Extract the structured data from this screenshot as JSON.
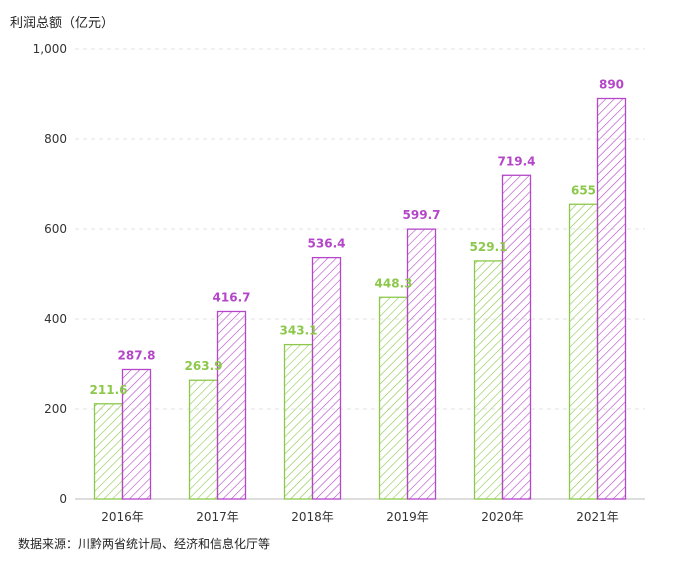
{
  "chart_data": {
    "type": "bar",
    "ylabel": "利润总额（亿元）",
    "categories": [
      "2016年",
      "2017年",
      "2018年",
      "2019年",
      "2020年",
      "2021年"
    ],
    "series": [
      {
        "values": [
          211.6,
          263.9,
          343.1,
          448.3,
          529.1,
          655
        ]
      },
      {
        "values": [
          287.8,
          416.7,
          536.4,
          599.7,
          719.4,
          890
        ]
      }
    ],
    "value_labels": [
      [
        "211.6",
        "263.9",
        "343.1",
        "448.3",
        "529.1",
        "655"
      ],
      [
        "287.8",
        "416.7",
        "536.4",
        "599.7",
        "719.4",
        "890"
      ]
    ],
    "ylim": [
      0,
      1000
    ],
    "yticks": [
      0,
      200,
      400,
      600,
      800,
      1000
    ],
    "ytick_labels": [
      "0",
      "200",
      "400",
      "600",
      "800",
      "1,000"
    ],
    "grid": true,
    "colors": [
      "#8cc84b",
      "#b446c8"
    ],
    "source": "数据来源：川黔两省统计局、经济和信息化厅等"
  }
}
